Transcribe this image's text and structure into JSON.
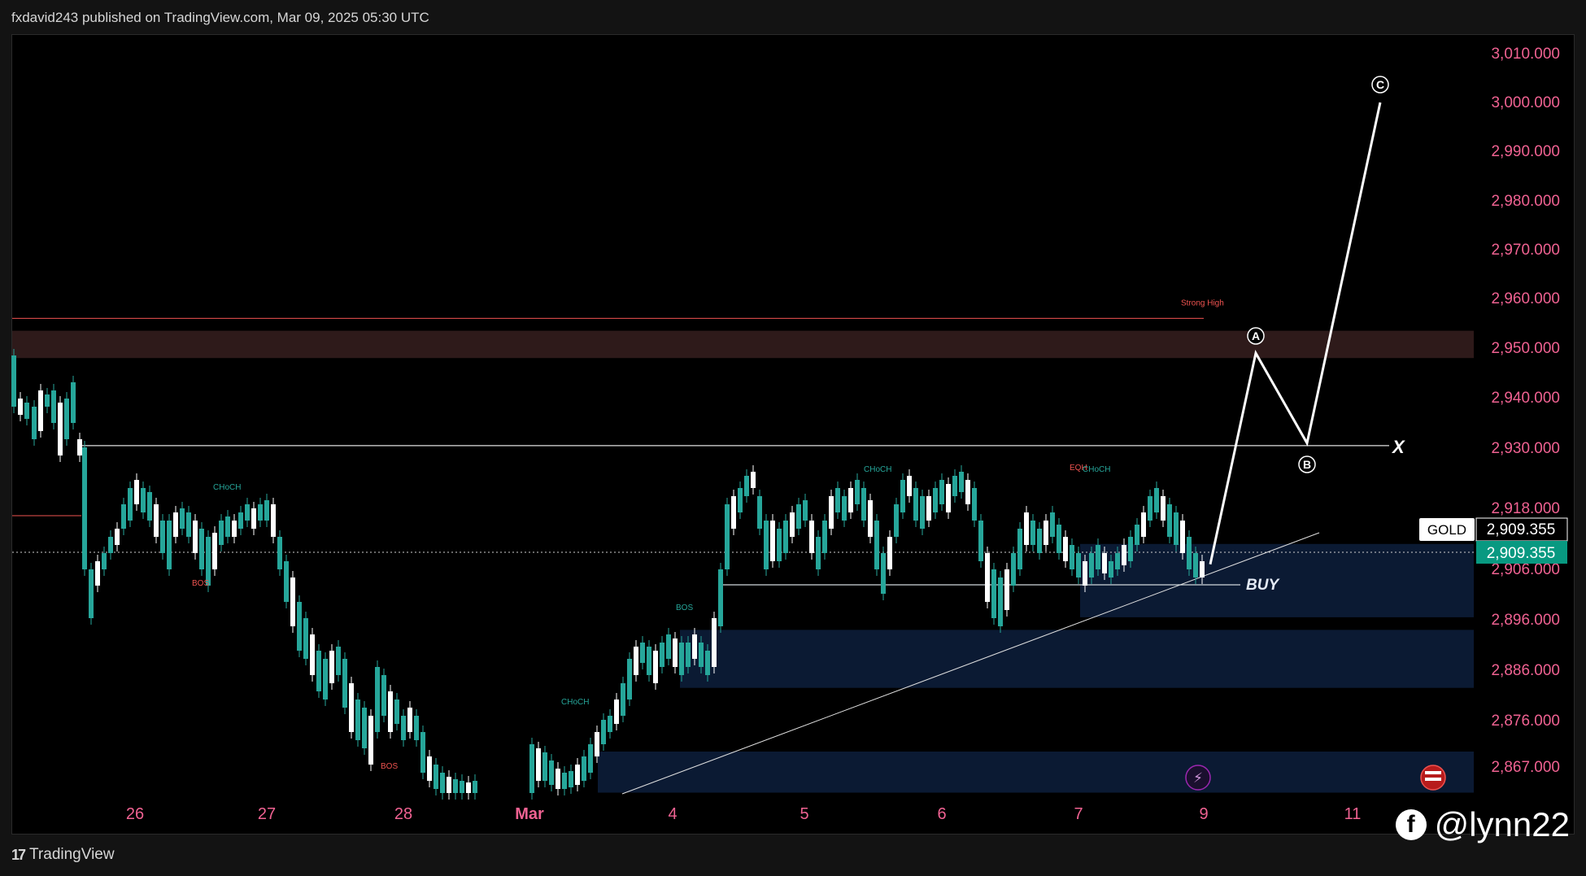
{
  "header": {
    "text": "fxdavid243 published on TradingView.com, Mar 09, 2025 05:30 UTC"
  },
  "footer": {
    "brand": "TradingView",
    "logo_mark": "17"
  },
  "watermark": {
    "handle": "@lynn22",
    "icon": "facebook-icon"
  },
  "colors": {
    "up": "#26a69a",
    "down": "#ffffff",
    "axis_text": "#f06292",
    "demand_zone": "#0b1a33",
    "supply_zone": "#2e1a1a",
    "price_tag": "#089981",
    "strong_high": "#ef5350"
  },
  "chart_data": {
    "type": "candlestick",
    "symbol": "GOLD",
    "last_price": "2,909.355",
    "price_tag": "2,909.355",
    "y_ticks": [
      "3,010.000",
      "3,000.000",
      "2,990.000",
      "2,980.000",
      "2,970.000",
      "2,960.000",
      "2,950.000",
      "2,940.000",
      "2,930.000",
      "2,918.000",
      "2,906.000",
      "2,896.000",
      "2,886.000",
      "2,876.000",
      "2,867.000"
    ],
    "y_range": [
      2862,
      3012
    ],
    "x_ticks": [
      "26",
      "27",
      "28",
      "Mar",
      "4",
      "5",
      "6",
      "7",
      "9",
      "11"
    ],
    "annotations": {
      "strong_high": "Strong High",
      "buy": "BUY",
      "x_mark": "X",
      "wave_a": "A",
      "wave_b": "B",
      "wave_c": "C",
      "small_labels": [
        "CHoCH",
        "BOS",
        "BOS",
        "CHoCH",
        "BOS",
        "CHoCH",
        "EQH",
        "CHoCH"
      ]
    },
    "levels": {
      "strong_high": 2956.0,
      "resistance": 2930.5,
      "buy_line": 2903.0
    },
    "zones": [
      {
        "name": "supply",
        "from": 2948.0,
        "to": 2953.5
      },
      {
        "name": "demand-1",
        "from": 2896.5,
        "to": 2911.0
      },
      {
        "name": "demand-2",
        "from": 2882.5,
        "to": 2894.0
      },
      {
        "name": "demand-3",
        "from": 2862.0,
        "to": 2870.0
      }
    ],
    "projection": [
      {
        "label": "start",
        "price": 2907.0
      },
      {
        "label": "A",
        "price": 2949.0
      },
      {
        "label": "B",
        "price": 2931.0
      },
      {
        "label": "C",
        "price": 3000.0
      }
    ]
  }
}
